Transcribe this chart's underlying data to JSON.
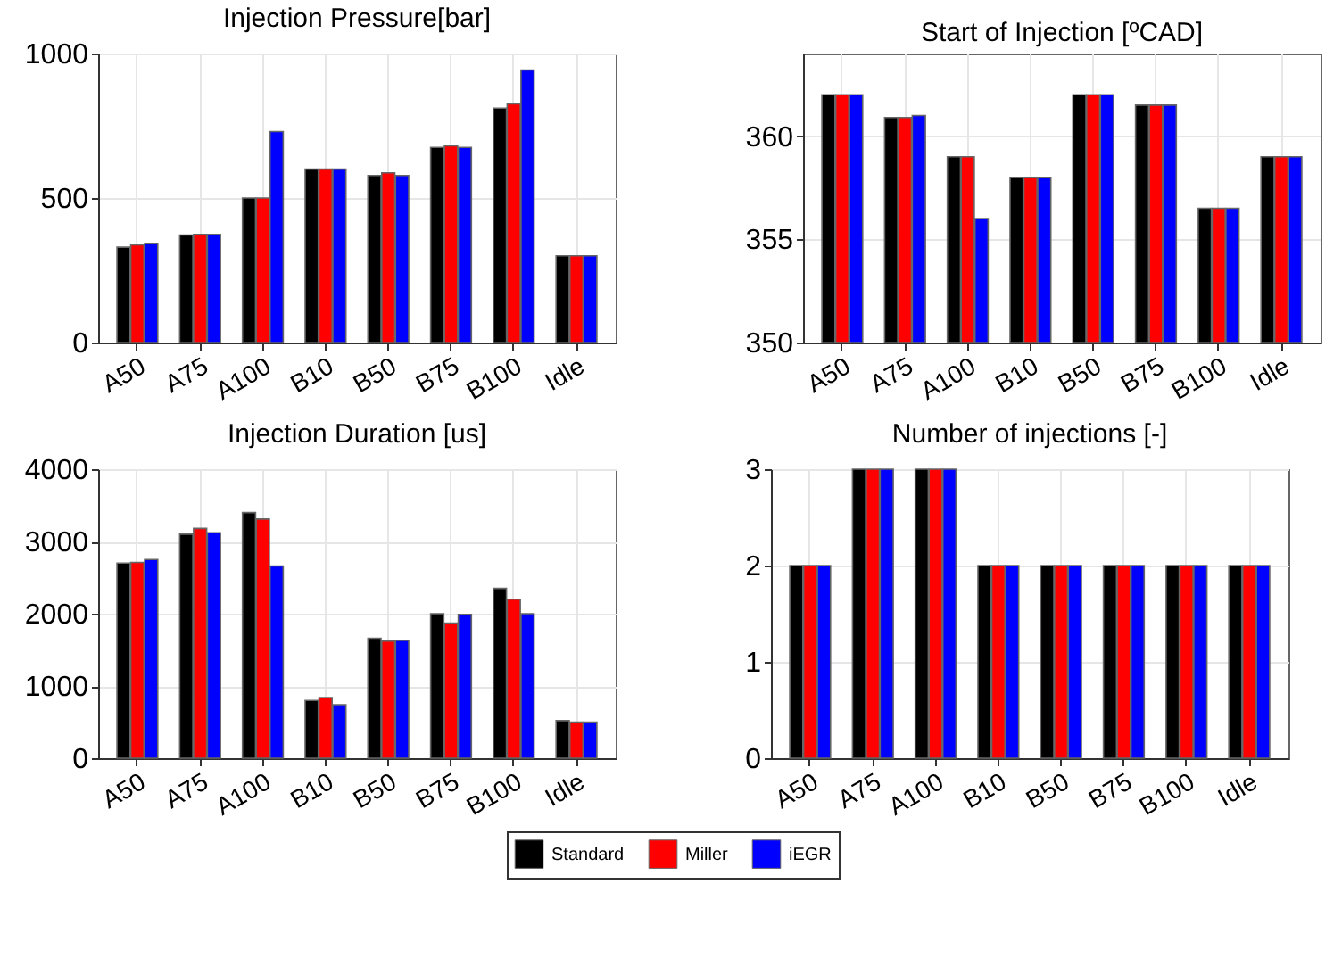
{
  "chart_data": [
    {
      "type": "bar",
      "title": "Injection Pressure[bar]",
      "categories": [
        "A50",
        "A75",
        "A100",
        "B10",
        "B50",
        "B75",
        "B100",
        "Idle"
      ],
      "series": [
        {
          "name": "Standard",
          "color": "#000000",
          "values": [
            330,
            372,
            500,
            600,
            578,
            675,
            811,
            300
          ]
        },
        {
          "name": "Miller",
          "color": "#ff0000",
          "values": [
            338,
            374,
            500,
            600,
            587,
            681,
            826,
            300
          ]
        },
        {
          "name": "iEGR",
          "color": "#0000ff",
          "values": [
            343,
            374,
            730,
            600,
            578,
            675,
            943,
            300
          ]
        }
      ],
      "ylim": [
        0,
        1000
      ],
      "yticks": [
        0,
        500,
        1000
      ],
      "grid": true,
      "legend": "bottom"
    },
    {
      "type": "bar",
      "title": "Start of Injection [ºCAD]",
      "categories": [
        "A50",
        "A75",
        "A100",
        "B10",
        "B50",
        "B75",
        "B100",
        "Idle"
      ],
      "series": [
        {
          "name": "Standard",
          "color": "#000000",
          "values": [
            362,
            360.9,
            359,
            358,
            362,
            361.5,
            356.5,
            359
          ]
        },
        {
          "name": "Miller",
          "color": "#ff0000",
          "values": [
            362,
            360.9,
            359,
            358,
            362,
            361.5,
            356.5,
            359
          ]
        },
        {
          "name": "iEGR",
          "color": "#0000ff",
          "values": [
            362,
            361,
            356,
            358,
            362,
            361.5,
            356.5,
            359
          ]
        }
      ],
      "ylim": [
        350,
        364
      ],
      "yticks": [
        350,
        355,
        360
      ],
      "grid": true,
      "legend": "bottom"
    },
    {
      "type": "bar",
      "title": "Injection Duration [us]",
      "categories": [
        "A50",
        "A75",
        "A100",
        "B10",
        "B50",
        "B75",
        "B100",
        "Idle"
      ],
      "series": [
        {
          "name": "Standard",
          "color": "#000000",
          "values": [
            2700,
            3100,
            3400,
            800,
            1660,
            2000,
            2350,
            520
          ]
        },
        {
          "name": "Miller",
          "color": "#ff0000",
          "values": [
            2710,
            3180,
            3310,
            840,
            1620,
            1870,
            2200,
            500
          ]
        },
        {
          "name": "iEGR",
          "color": "#0000ff",
          "values": [
            2750,
            3120,
            2660,
            740,
            1630,
            1990,
            2000,
            500
          ]
        }
      ],
      "ylim": [
        0,
        4000
      ],
      "yticks": [
        0,
        1000,
        2000,
        3000,
        4000
      ],
      "grid": true,
      "legend": "bottom"
    },
    {
      "type": "bar",
      "title": "Number of injections [-]",
      "categories": [
        "A50",
        "A75",
        "A100",
        "B10",
        "B50",
        "B75",
        "B100",
        "Idle"
      ],
      "series": [
        {
          "name": "Standard",
          "color": "#000000",
          "values": [
            2,
            3,
            3,
            2,
            2,
            2,
            2,
            2
          ]
        },
        {
          "name": "Miller",
          "color": "#ff0000",
          "values": [
            2,
            3,
            3,
            2,
            2,
            2,
            2,
            2
          ]
        },
        {
          "name": "iEGR",
          "color": "#0000ff",
          "values": [
            2,
            3,
            3,
            2,
            2,
            2,
            2,
            2
          ]
        }
      ],
      "ylim": [
        0,
        3
      ],
      "yticks": [
        0,
        1,
        2,
        3
      ],
      "grid": true,
      "legend": "bottom"
    }
  ]
}
